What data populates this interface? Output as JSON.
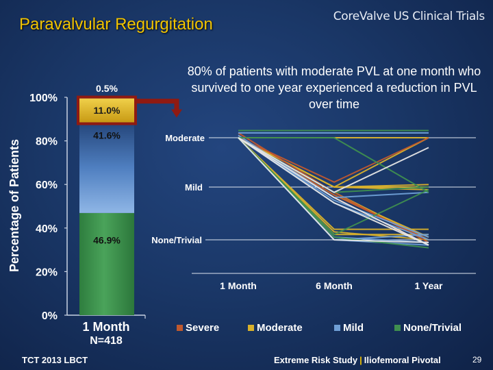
{
  "slide": {
    "title": "Paravalvular Regurgitation",
    "brand": "CoreValve US Clinical Trials",
    "callout": "80% of patients with moderate PVL at one month who survived to one year experienced a reduction in PVL over time",
    "footer_left": "TCT 2013 LBCT",
    "footer_right_a": "Extreme Risk Study",
    "footer_right_sep": "|",
    "footer_right_b": "Iliofemoral Pivotal",
    "page_number": "29"
  },
  "colors": {
    "severe": "#c0592e",
    "moderate": "#d9b12b",
    "mild": "#6f9fd6",
    "none_trivial": "#3f8f4f",
    "arrow": "#8f1a12",
    "title": "#f2c400"
  },
  "chart_data": [
    {
      "type": "bar",
      "stacked": true,
      "ylabel": "Percentage of Patients",
      "yticks": [
        "0%",
        "20%",
        "40%",
        "60%",
        "80%",
        "100%"
      ],
      "ylim": [
        0,
        100
      ],
      "categories": [
        "1 Month"
      ],
      "category_sub": "N=418",
      "series": [
        {
          "key": "none_trivial",
          "values": [
            46.9
          ],
          "label": "46.9%"
        },
        {
          "key": "mild",
          "values": [
            41.6
          ],
          "label": "41.6%"
        },
        {
          "key": "moderate",
          "values": [
            11.0
          ],
          "label": "11.0%"
        },
        {
          "key": "severe",
          "values": [
            0.5
          ],
          "label": "0.5%"
        }
      ]
    },
    {
      "type": "line",
      "x": [
        "1 Month",
        "6 Month",
        "1 Year"
      ],
      "y_categories": [
        "None/Trivial",
        "Mild",
        "Moderate"
      ],
      "legend": [
        "Severe",
        "Moderate",
        "Mild",
        "None/Trivial"
      ],
      "legend_position": "bottom",
      "lines": [
        {
          "c": "moderate",
          "y": [
            2.0,
            1.0,
            1.0
          ]
        },
        {
          "c": "moderate",
          "y": [
            2.0,
            1.0,
            0.95
          ]
        },
        {
          "c": "moderate",
          "y": [
            2.0,
            1.0,
            1.05
          ]
        },
        {
          "c": "moderate",
          "y": [
            2.0,
            0.9,
            0.0
          ]
        },
        {
          "c": "moderate",
          "y": [
            2.0,
            0.85,
            0.05
          ]
        },
        {
          "c": "moderate",
          "y": [
            2.0,
            0.15,
            0.0
          ]
        },
        {
          "c": "moderate",
          "y": [
            2.0,
            0.2,
            0.2
          ]
        },
        {
          "c": "moderate",
          "y": [
            2.0,
            0.1,
            0.1
          ]
        },
        {
          "c": "moderate",
          "y": [
            2.0,
            1.0,
            2.0
          ]
        },
        {
          "c": "moderate",
          "y": [
            2.0,
            2.0,
            2.0
          ]
        },
        {
          "c": "severe",
          "y": [
            2.05,
            0.8,
            -0.1
          ]
        },
        {
          "c": "severe",
          "y": [
            2.0,
            0.85,
            0.0
          ]
        },
        {
          "c": "severe",
          "y": [
            2.0,
            1.1,
            2.0
          ]
        },
        {
          "c": "severe",
          "y": [
            2.1,
            0.9,
            -0.05
          ]
        },
        {
          "c": "mild",
          "y": [
            2.0,
            0.05,
            -0.05
          ]
        },
        {
          "c": "mild",
          "y": [
            2.0,
            0.0,
            -0.1
          ]
        },
        {
          "c": "mild",
          "y": [
            2.0,
            0.7,
            0.0
          ]
        },
        {
          "c": "mild",
          "y": [
            2.0,
            0.75,
            0.05
          ]
        },
        {
          "c": "mild",
          "y": [
            2.0,
            0.0,
            0.1
          ]
        },
        {
          "c": "mild",
          "y": [
            2.1,
            2.1,
            2.1
          ]
        },
        {
          "c": "mild",
          "y": [
            2.05,
            0.8,
            0.9
          ]
        },
        {
          "c": "none_trivial",
          "y": [
            2.0,
            2.0,
            0.9
          ]
        },
        {
          "c": "none_trivial",
          "y": [
            2.15,
            2.15,
            2.15
          ]
        },
        {
          "c": "none_trivial",
          "y": [
            2.0,
            0.1,
            0.95
          ]
        },
        {
          "c": "none_trivial",
          "y": [
            2.0,
            0.05,
            -0.15
          ]
        },
        {
          "c": "none_trivial",
          "y": [
            2.0,
            0.9,
            1.0
          ]
        },
        {
          "c": "white",
          "y": [
            2.0,
            0.9,
            1.8
          ]
        },
        {
          "c": "white",
          "y": [
            2.0,
            0.8,
            -0.1
          ]
        },
        {
          "c": "white",
          "y": [
            2.0,
            0.0,
            -0.05
          ]
        },
        {
          "c": "white",
          "y": [
            2.0,
            0.7,
            -0.1
          ]
        }
      ]
    }
  ]
}
